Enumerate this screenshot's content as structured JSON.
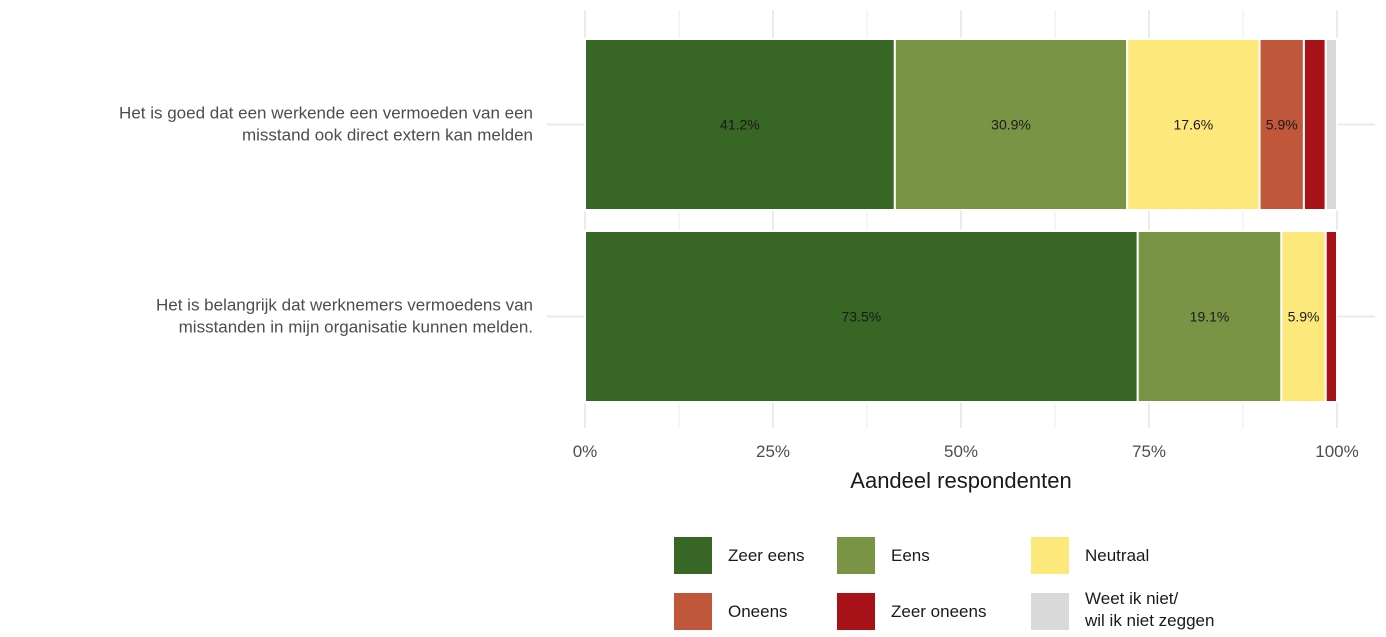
{
  "chart_data": {
    "type": "bar",
    "orientation": "horizontal",
    "stacked": true,
    "xlabel": "Aandeel respondenten",
    "xlim": [
      0,
      100
    ],
    "xticks": [
      0,
      25,
      50,
      75,
      100
    ],
    "xtick_labels": [
      "0%",
      "25%",
      "50%",
      "75%",
      "100%"
    ],
    "grid": true,
    "legend_position": "bottom",
    "categories": [
      [
        "Het is goed dat een werkende een vermoeden van een",
        "misstand ook direct extern kan melden"
      ],
      [
        "Het is belangrijk dat werknemers vermoedens van",
        "misstanden in mijn organisatie kunnen melden."
      ]
    ],
    "series": [
      {
        "name": "Zeer eens",
        "color": "#386625",
        "values": [
          41.2,
          73.5
        ],
        "labels": [
          "41.2%",
          "73.5%"
        ]
      },
      {
        "name": "Eens",
        "color": "#7a9446",
        "values": [
          30.9,
          19.1
        ],
        "labels": [
          "30.9%",
          "19.1%"
        ]
      },
      {
        "name": "Neutraal",
        "color": "#fde87c",
        "values": [
          17.6,
          5.9
        ],
        "labels": [
          "17.6%",
          "5.9%"
        ]
      },
      {
        "name": "Oneens",
        "color": "#c1573a",
        "values": [
          5.9,
          0
        ],
        "labels": [
          "5.9%",
          ""
        ]
      },
      {
        "name": "Zeer oneens",
        "color": "#a61217",
        "values": [
          2.9,
          1.5
        ],
        "labels": [
          "",
          ""
        ]
      },
      {
        "name": [
          "Weet ik niet/",
          "wil ik niet zeggen"
        ],
        "color": "#d9d9d9",
        "values": [
          1.5,
          0
        ],
        "labels": [
          "",
          ""
        ]
      }
    ]
  }
}
